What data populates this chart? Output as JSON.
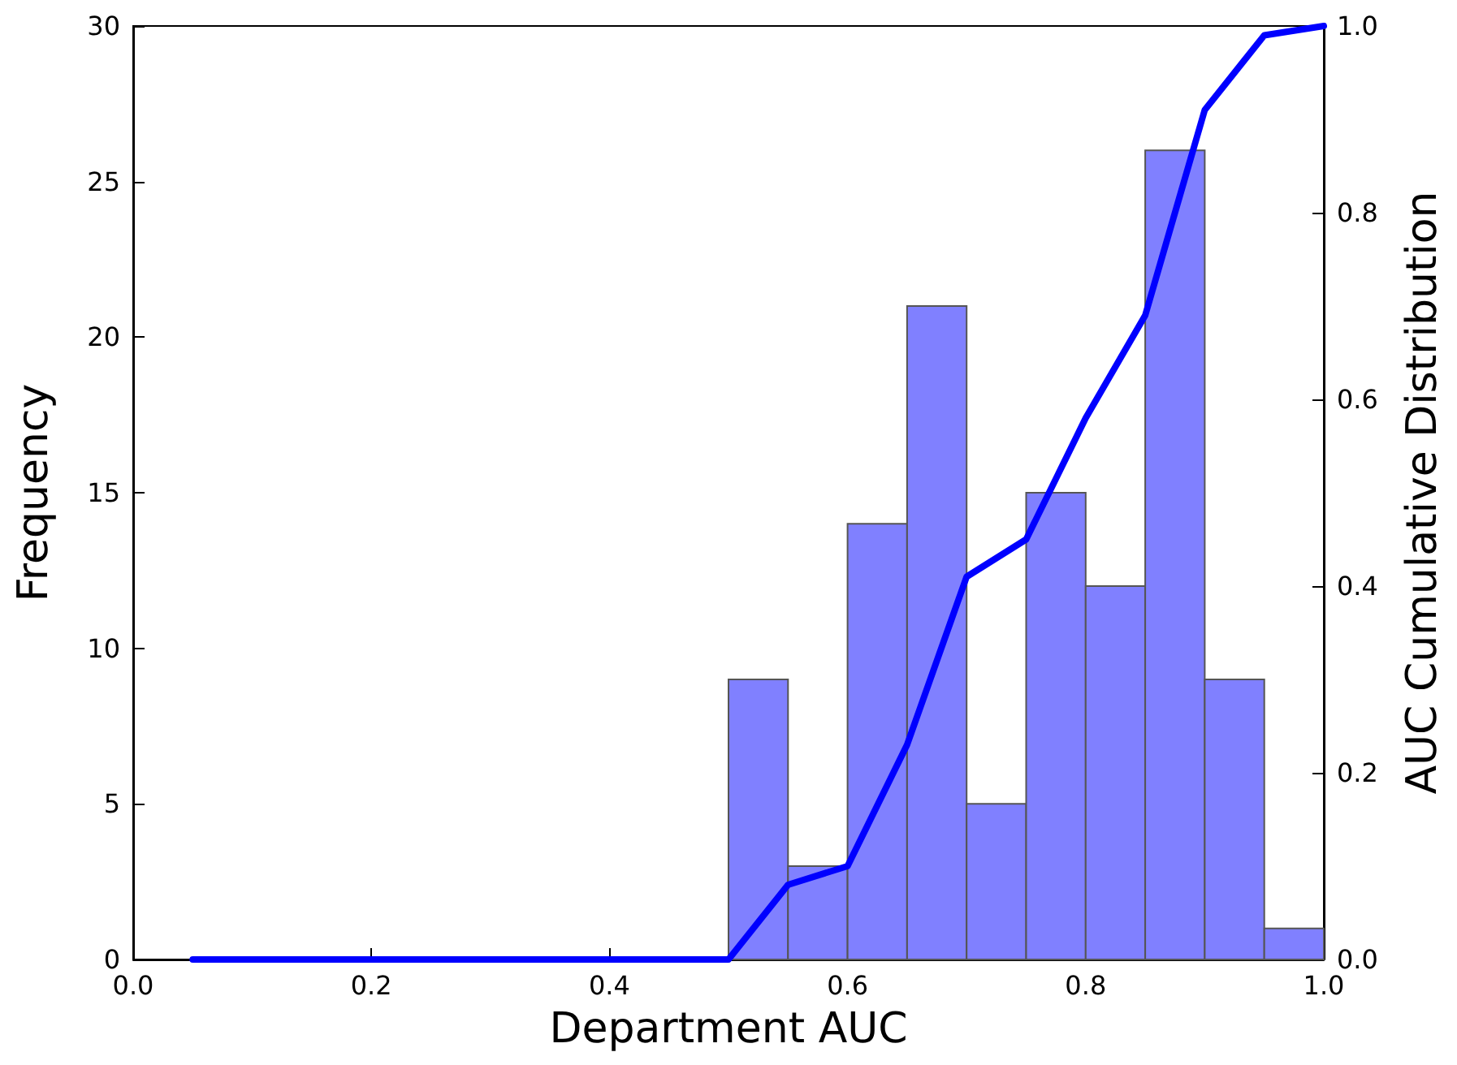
{
  "chart_data": {
    "type": "histogram",
    "xlabel": "Department AUC",
    "ylabel": "Frequency",
    "y2label": "AUC Cumulative Distribution",
    "series": [
      {
        "color": "#8080ff",
        "bins": [
          0.5,
          0.55,
          0.6,
          0.65,
          0.7,
          0.75,
          0.8,
          0.85,
          0.9,
          0.95,
          1.0
        ],
        "values": [
          9,
          3,
          14,
          21,
          5,
          15,
          12,
          26,
          9,
          1
        ]
      },
      {
        "type": "line",
        "axis": "y2",
        "color": "#0000ff",
        "x": [
          0.05,
          0.5,
          0.55,
          0.6,
          0.65,
          0.7,
          0.75,
          0.8,
          0.85,
          0.9,
          0.95,
          1.0
        ],
        "values": [
          0,
          0,
          0.08,
          0.1,
          0.23,
          0.41,
          0.45,
          0.58,
          0.69,
          0.91,
          0.99,
          1.0
        ]
      }
    ],
    "xlim": [
      0,
      1
    ],
    "xticks": [
      {
        "value": 0,
        "label": "0.0"
      },
      {
        "value": 0.2,
        "label": "0.2"
      },
      {
        "value": 0.4,
        "label": "0.4"
      },
      {
        "value": 0.6,
        "label": "0.6"
      },
      {
        "value": 0.8,
        "label": "0.8"
      },
      {
        "value": 1,
        "label": "1.0"
      }
    ],
    "ylim": [
      0,
      30
    ],
    "yticks": [
      0,
      5,
      10,
      15,
      20,
      25,
      30
    ],
    "y2lim": [
      0,
      1
    ],
    "y2ticks": [
      {
        "value": 0,
        "label": "0.0"
      },
      {
        "value": 0.2,
        "label": "0.2"
      },
      {
        "value": 0.4,
        "label": "0.4"
      },
      {
        "value": 0.6,
        "label": "0.6"
      },
      {
        "value": 0.8,
        "label": "0.8"
      },
      {
        "value": 1,
        "label": "1.0"
      }
    ],
    "grid": false,
    "marker": "none",
    "line_style": "solid"
  }
}
